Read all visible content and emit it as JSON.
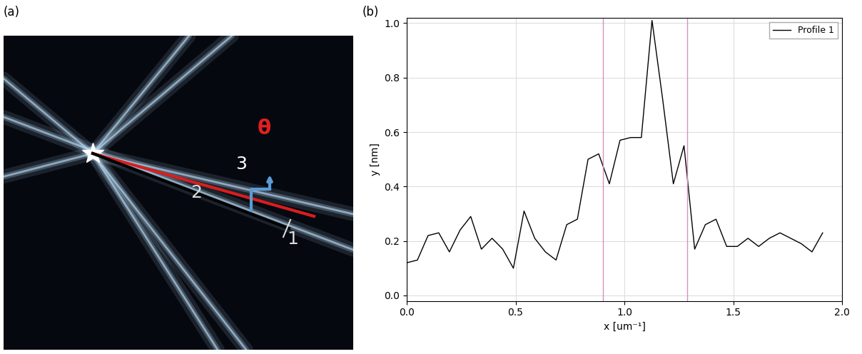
{
  "panel_labels": [
    "(a)",
    "(b)"
  ],
  "image": {
    "line_labels": [
      "3",
      "2",
      "1"
    ],
    "angle_label": "θ"
  },
  "chart_data": {
    "type": "line",
    "x_label": "x [um⁻¹]",
    "y_label": "y [nm]",
    "x": [
      0.0,
      0.049,
      0.098,
      0.147,
      0.196,
      0.245,
      0.294,
      0.343,
      0.392,
      0.441,
      0.49,
      0.539,
      0.588,
      0.637,
      0.686,
      0.735,
      0.784,
      0.833,
      0.882,
      0.931,
      0.98,
      1.029,
      1.078,
      1.127,
      1.176,
      1.225,
      1.274,
      1.323,
      1.372,
      1.421,
      1.47,
      1.519,
      1.568,
      1.617,
      1.666,
      1.715,
      1.764,
      1.813,
      1.862,
      1.911
    ],
    "series": [
      {
        "name": "Profile 1",
        "color": "#000000",
        "values": [
          0.12,
          0.13,
          0.22,
          0.23,
          0.16,
          0.24,
          0.29,
          0.17,
          0.21,
          0.17,
          0.1,
          0.31,
          0.21,
          0.16,
          0.13,
          0.26,
          0.28,
          0.5,
          0.52,
          0.41,
          0.57,
          0.58,
          0.58,
          1.01,
          0.72,
          0.41,
          0.55,
          0.17,
          0.26,
          0.28,
          0.18,
          0.18,
          0.21,
          0.18,
          0.21,
          0.23,
          0.21,
          0.19,
          0.16,
          0.23
        ]
      }
    ],
    "vertical_lines": [
      0.9,
      1.29
    ],
    "xlim": [
      0.0,
      2.0
    ],
    "xticks": [
      0.0,
      0.5,
      1.0,
      1.5,
      2.0
    ],
    "ylim": [
      -0.02,
      1.02
    ],
    "yticks": [
      0.0,
      0.2,
      0.4,
      0.6,
      0.8,
      1.0
    ],
    "grid": true,
    "legend": "upper right"
  }
}
